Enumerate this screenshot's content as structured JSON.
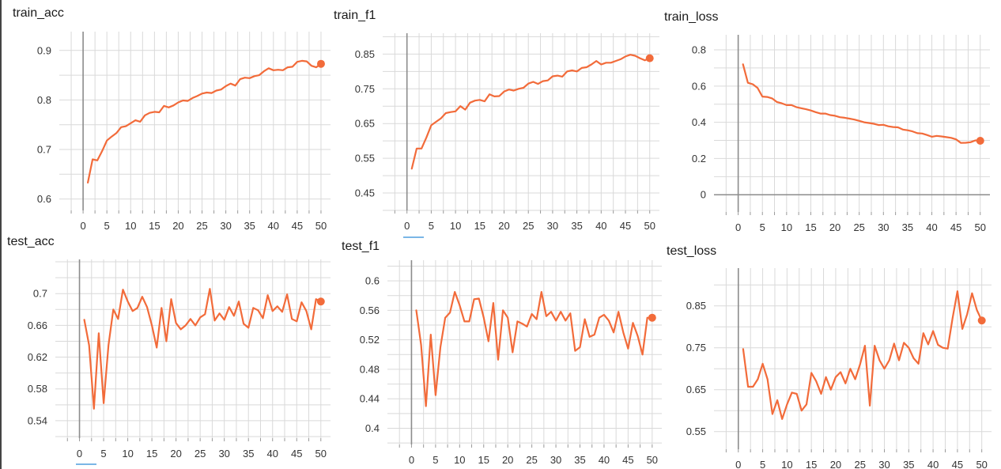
{
  "accent_color": "#f26b3a",
  "grid_color": "#d9d9d9",
  "chart_data": [
    {
      "type": "line",
      "title": "train_acc",
      "x": [
        1,
        2,
        3,
        4,
        5,
        6,
        7,
        8,
        9,
        10,
        11,
        12,
        13,
        14,
        15,
        16,
        17,
        18,
        19,
        20,
        21,
        22,
        23,
        24,
        25,
        26,
        27,
        28,
        29,
        30,
        31,
        32,
        33,
        34,
        35,
        36,
        37,
        38,
        39,
        40,
        41,
        42,
        43,
        44,
        45,
        46,
        47,
        48,
        49,
        50
      ],
      "values": [
        0.633,
        0.68,
        0.678,
        0.697,
        0.718,
        0.726,
        0.733,
        0.745,
        0.747,
        0.753,
        0.759,
        0.756,
        0.769,
        0.774,
        0.776,
        0.775,
        0.788,
        0.785,
        0.789,
        0.795,
        0.799,
        0.798,
        0.804,
        0.808,
        0.813,
        0.815,
        0.814,
        0.819,
        0.821,
        0.828,
        0.833,
        0.829,
        0.842,
        0.845,
        0.844,
        0.848,
        0.85,
        0.858,
        0.864,
        0.86,
        0.861,
        0.86,
        0.866,
        0.867,
        0.877,
        0.879,
        0.878,
        0.869,
        0.866,
        0.873
      ],
      "xlim": [
        -5,
        52
      ],
      "ylim": [
        0.577,
        0.938
      ],
      "xticks": [
        "0",
        "5",
        "10",
        "15",
        "20",
        "25",
        "30",
        "35",
        "40",
        "45",
        "50"
      ],
      "yticks": [
        "0.6",
        "0.7",
        "0.8",
        "0.9"
      ],
      "grid": true
    },
    {
      "type": "line",
      "title": "train_f1",
      "x": [
        1,
        2,
        3,
        4,
        5,
        6,
        7,
        8,
        9,
        10,
        11,
        12,
        13,
        14,
        15,
        16,
        17,
        18,
        19,
        20,
        21,
        22,
        23,
        24,
        25,
        26,
        27,
        28,
        29,
        30,
        31,
        32,
        33,
        34,
        35,
        36,
        37,
        38,
        39,
        40,
        41,
        42,
        43,
        44,
        45,
        46,
        47,
        48,
        49,
        50
      ],
      "values": [
        0.52,
        0.578,
        0.578,
        0.61,
        0.645,
        0.655,
        0.665,
        0.68,
        0.683,
        0.685,
        0.7,
        0.69,
        0.71,
        0.716,
        0.718,
        0.714,
        0.734,
        0.728,
        0.729,
        0.742,
        0.748,
        0.745,
        0.75,
        0.753,
        0.765,
        0.77,
        0.764,
        0.772,
        0.774,
        0.786,
        0.788,
        0.785,
        0.8,
        0.803,
        0.8,
        0.81,
        0.812,
        0.82,
        0.83,
        0.82,
        0.825,
        0.825,
        0.83,
        0.835,
        0.843,
        0.848,
        0.845,
        0.838,
        0.832,
        0.838
      ],
      "xlim": [
        -5,
        52
      ],
      "ylim": [
        0.4,
        0.91
      ],
      "xticks": [
        "0",
        "5",
        "10",
        "15",
        "20",
        "25",
        "30",
        "35",
        "40",
        "45",
        "50"
      ],
      "yticks": [
        "0.45",
        "0.55",
        "0.65",
        "0.75",
        "0.85"
      ],
      "grid": true
    },
    {
      "type": "line",
      "title": "train_loss",
      "x": [
        1,
        2,
        3,
        4,
        5,
        6,
        7,
        8,
        9,
        10,
        11,
        12,
        13,
        14,
        15,
        16,
        17,
        18,
        19,
        20,
        21,
        22,
        23,
        24,
        25,
        26,
        27,
        28,
        29,
        30,
        31,
        32,
        33,
        34,
        35,
        36,
        37,
        38,
        39,
        40,
        41,
        42,
        43,
        44,
        45,
        46,
        47,
        48,
        49,
        50
      ],
      "values": [
        0.72,
        0.618,
        0.61,
        0.59,
        0.542,
        0.54,
        0.532,
        0.512,
        0.505,
        0.495,
        0.495,
        0.484,
        0.478,
        0.472,
        0.465,
        0.456,
        0.448,
        0.448,
        0.44,
        0.436,
        0.428,
        0.425,
        0.42,
        0.415,
        0.408,
        0.4,
        0.396,
        0.392,
        0.385,
        0.386,
        0.378,
        0.374,
        0.372,
        0.36,
        0.356,
        0.35,
        0.34,
        0.338,
        0.33,
        0.32,
        0.325,
        0.322,
        0.318,
        0.314,
        0.306,
        0.286,
        0.287,
        0.29,
        0.3,
        0.298
      ],
      "xlim": [
        -5,
        52
      ],
      "ylim": [
        -0.095,
        0.883
      ],
      "xticks": [
        "0",
        "5",
        "10",
        "15",
        "20",
        "25",
        "30",
        "35",
        "40",
        "45",
        "50"
      ],
      "yticks": [
        "0",
        "0.2",
        "0.4",
        "0.6",
        "0.8"
      ],
      "grid": true
    },
    {
      "type": "line",
      "title": "test_acc",
      "x": [
        1,
        2,
        3,
        4,
        5,
        6,
        7,
        8,
        9,
        10,
        11,
        12,
        13,
        14,
        15,
        16,
        17,
        18,
        19,
        20,
        21,
        22,
        23,
        24,
        25,
        26,
        27,
        28,
        29,
        30,
        31,
        32,
        33,
        34,
        35,
        36,
        37,
        38,
        39,
        40,
        41,
        42,
        43,
        44,
        45,
        46,
        47,
        48,
        49,
        50
      ],
      "values": [
        0.667,
        0.635,
        0.555,
        0.65,
        0.562,
        0.635,
        0.68,
        0.668,
        0.705,
        0.69,
        0.678,
        0.682,
        0.696,
        0.683,
        0.66,
        0.632,
        0.682,
        0.64,
        0.693,
        0.663,
        0.655,
        0.66,
        0.668,
        0.66,
        0.67,
        0.674,
        0.706,
        0.666,
        0.675,
        0.667,
        0.683,
        0.672,
        0.69,
        0.662,
        0.657,
        0.682,
        0.679,
        0.669,
        0.698,
        0.678,
        0.684,
        0.677,
        0.699,
        0.668,
        0.665,
        0.689,
        0.678,
        0.655,
        0.693,
        0.69
      ],
      "xlim": [
        -5,
        52
      ],
      "ylim": [
        0.518,
        0.743
      ],
      "xticks": [
        "0",
        "5",
        "10",
        "15",
        "20",
        "25",
        "30",
        "35",
        "40",
        "45",
        "50"
      ],
      "yticks": [
        "0.54",
        "0.58",
        "0.62",
        "0.66",
        "0.7"
      ],
      "grid": true
    },
    {
      "type": "line",
      "title": "test_f1",
      "x": [
        1,
        2,
        3,
        4,
        5,
        6,
        7,
        8,
        9,
        10,
        11,
        12,
        13,
        14,
        15,
        16,
        17,
        18,
        19,
        20,
        21,
        22,
        23,
        24,
        25,
        26,
        27,
        28,
        29,
        30,
        31,
        32,
        33,
        34,
        35,
        36,
        37,
        38,
        39,
        40,
        41,
        42,
        43,
        44,
        45,
        46,
        47,
        48,
        49,
        50
      ],
      "values": [
        0.56,
        0.513,
        0.43,
        0.527,
        0.445,
        0.51,
        0.55,
        0.557,
        0.585,
        0.567,
        0.545,
        0.545,
        0.575,
        0.576,
        0.55,
        0.518,
        0.57,
        0.493,
        0.56,
        0.55,
        0.503,
        0.545,
        0.542,
        0.538,
        0.555,
        0.548,
        0.585,
        0.552,
        0.558,
        0.546,
        0.558,
        0.546,
        0.556,
        0.505,
        0.51,
        0.548,
        0.524,
        0.527,
        0.55,
        0.554,
        0.546,
        0.53,
        0.558,
        0.53,
        0.508,
        0.543,
        0.525,
        0.5,
        0.55,
        0.55
      ],
      "xlim": [
        -5,
        52
      ],
      "ylim": [
        0.378,
        0.628
      ],
      "xticks": [
        "0",
        "5",
        "10",
        "15",
        "20",
        "25",
        "30",
        "35",
        "40",
        "45",
        "50"
      ],
      "yticks": [
        "0.4",
        "0.44",
        "0.48",
        "0.52",
        "0.56",
        "0.6"
      ],
      "grid": true
    },
    {
      "type": "line",
      "title": "test_loss",
      "x": [
        1,
        2,
        3,
        4,
        5,
        6,
        7,
        8,
        9,
        10,
        11,
        12,
        13,
        14,
        15,
        16,
        17,
        18,
        19,
        20,
        21,
        22,
        23,
        24,
        25,
        26,
        27,
        28,
        29,
        30,
        31,
        32,
        33,
        34,
        35,
        36,
        37,
        38,
        39,
        40,
        41,
        42,
        43,
        44,
        45,
        46,
        47,
        48,
        49,
        50
      ],
      "values": [
        0.747,
        0.657,
        0.657,
        0.675,
        0.712,
        0.675,
        0.592,
        0.625,
        0.58,
        0.615,
        0.643,
        0.64,
        0.6,
        0.615,
        0.69,
        0.67,
        0.64,
        0.68,
        0.65,
        0.68,
        0.692,
        0.665,
        0.7,
        0.675,
        0.71,
        0.755,
        0.612,
        0.755,
        0.72,
        0.7,
        0.72,
        0.76,
        0.72,
        0.762,
        0.75,
        0.725,
        0.712,
        0.785,
        0.758,
        0.79,
        0.757,
        0.75,
        0.748,
        0.82,
        0.885,
        0.795,
        0.83,
        0.88,
        0.84,
        0.815
      ],
      "xlim": [
        -5,
        52
      ],
      "ylim": [
        0.508,
        0.94
      ],
      "xticks": [
        "0",
        "5",
        "10",
        "15",
        "20",
        "25",
        "30",
        "35",
        "40",
        "45",
        "50"
      ],
      "yticks": [
        "0.55",
        "0.65",
        "0.75",
        "0.85"
      ],
      "grid": true
    }
  ]
}
